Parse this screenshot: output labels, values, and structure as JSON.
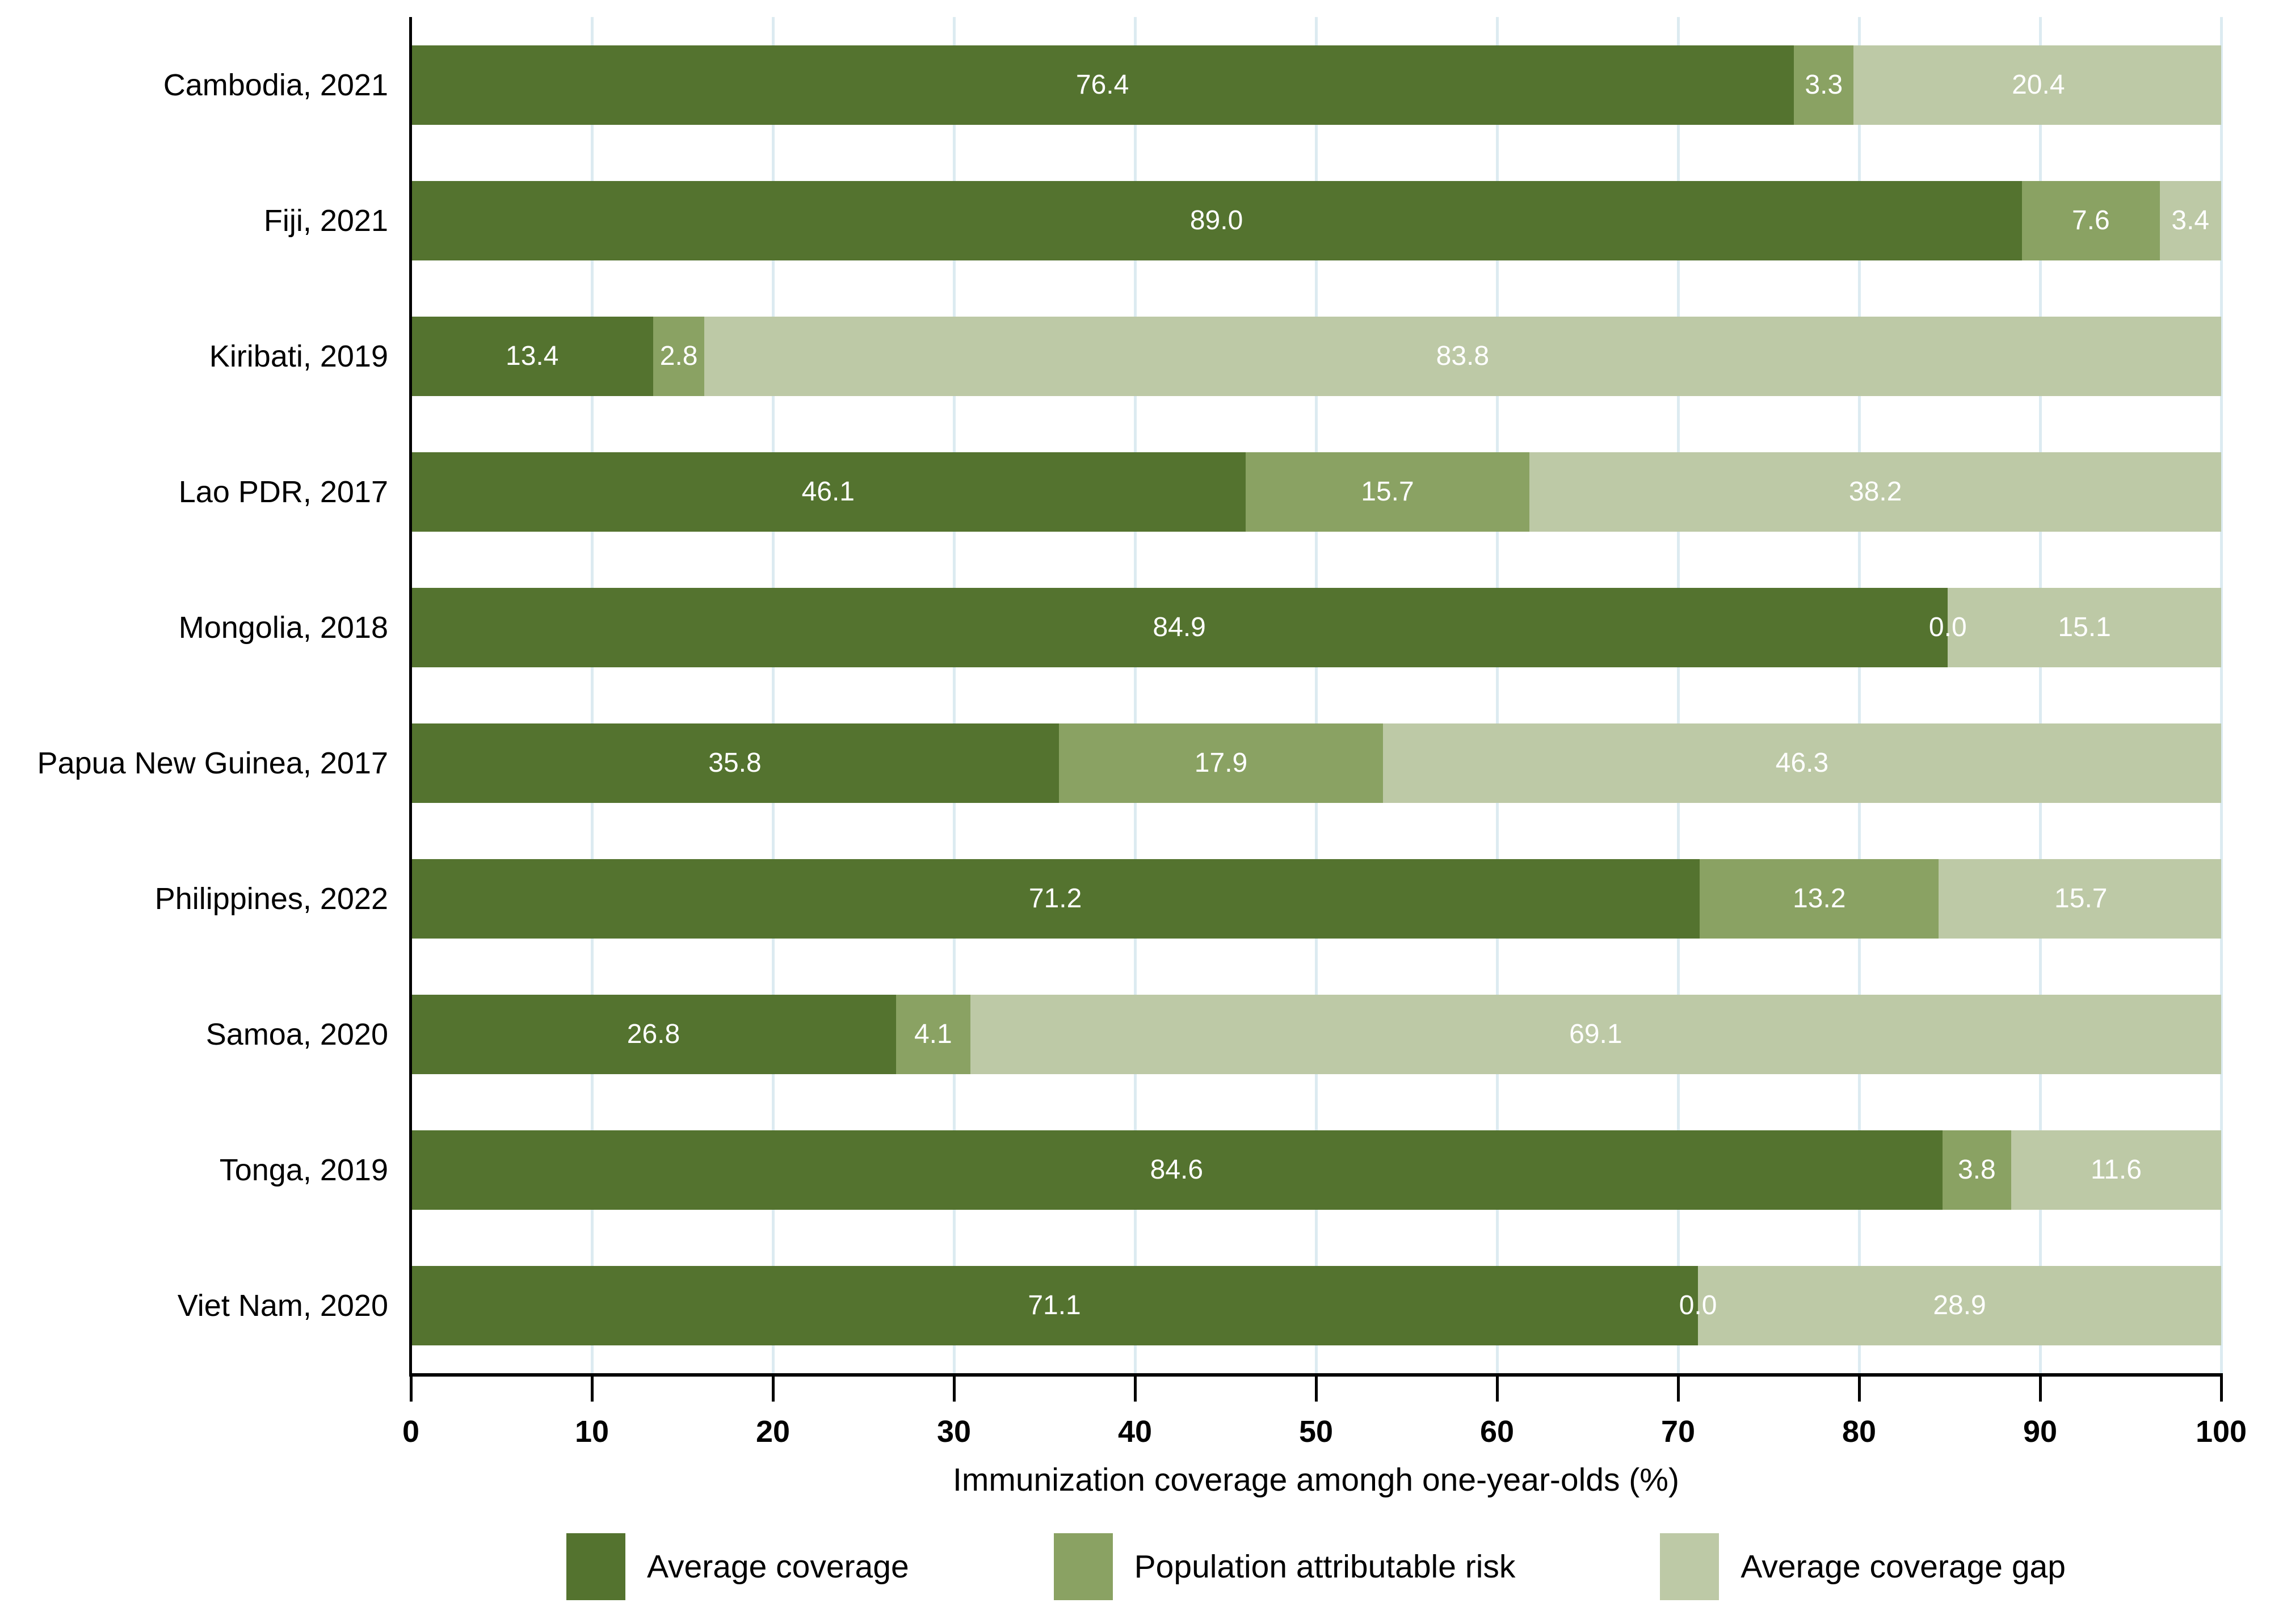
{
  "chart_data": {
    "type": "bar",
    "orientation": "horizontal",
    "stacked": true,
    "title": "",
    "xlabel": "Immunization coverage amongh one-year-olds (%)",
    "ylabel": "",
    "xlim": [
      0,
      100
    ],
    "x_ticks": [
      0,
      10,
      20,
      30,
      40,
      50,
      60,
      70,
      80,
      90,
      100
    ],
    "grid": "vertical",
    "grid_color": "#dcebf1",
    "axis_color": "#000000",
    "value_label_color": "#ffffff",
    "value_label_decimals": 1,
    "legend_position": "bottom",
    "categories": [
      "Cambodia, 2021",
      "Fiji, 2021",
      "Kiribati, 2019",
      "Lao PDR, 2017",
      "Mongolia, 2018",
      "Papua New Guinea, 2017",
      "Philippines, 2022",
      "Samoa, 2020",
      "Tonga, 2019",
      "Viet Nam, 2020"
    ],
    "series": [
      {
        "name": "Average coverage",
        "color": "#54732f",
        "values": [
          76.4,
          89.0,
          13.4,
          46.1,
          84.9,
          35.8,
          71.2,
          26.8,
          84.6,
          71.1
        ]
      },
      {
        "name": "Population attributable risk",
        "color": "#8aa263",
        "values": [
          3.3,
          7.6,
          2.8,
          15.7,
          0.0,
          17.9,
          13.2,
          4.1,
          3.8,
          0.0
        ]
      },
      {
        "name": "Average coverage gap",
        "color": "#bdc9a6",
        "values": [
          20.4,
          3.4,
          83.8,
          38.2,
          15.1,
          46.3,
          15.7,
          69.1,
          11.6,
          28.9
        ]
      }
    ]
  }
}
